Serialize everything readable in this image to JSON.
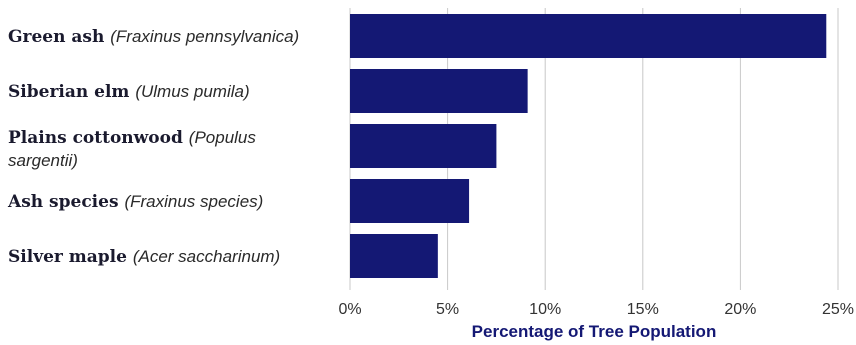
{
  "chart_data": {
    "type": "bar",
    "orientation": "horizontal",
    "categories": [
      {
        "name": "Green ash",
        "scientific": "(Fraxinus pennsylvanica)"
      },
      {
        "name": "Siberian elm",
        "scientific": "(Ulmus pumila)"
      },
      {
        "name": "Plains cottonwood",
        "scientific": "(Populus",
        "scientific_cont": "sargentii)"
      },
      {
        "name": "Ash species",
        "scientific": "(Fraxinus species)"
      },
      {
        "name": "Silver maple",
        "scientific": "(Acer saccharinum)"
      }
    ],
    "values": [
      24.4,
      9.1,
      7.5,
      6.1,
      4.5
    ],
    "xlim": [
      0,
      25
    ],
    "xticks": [
      0,
      5,
      10,
      15,
      20,
      25
    ],
    "xtick_labels": [
      "0%",
      "5%",
      "10%",
      "15%",
      "20%",
      "25%"
    ],
    "xlabel": "Percentage of Tree Population",
    "grid": "vertical",
    "bar_color": "#141874",
    "axis_title_color": "#141874",
    "grid_color": "#c8c8c8"
  }
}
